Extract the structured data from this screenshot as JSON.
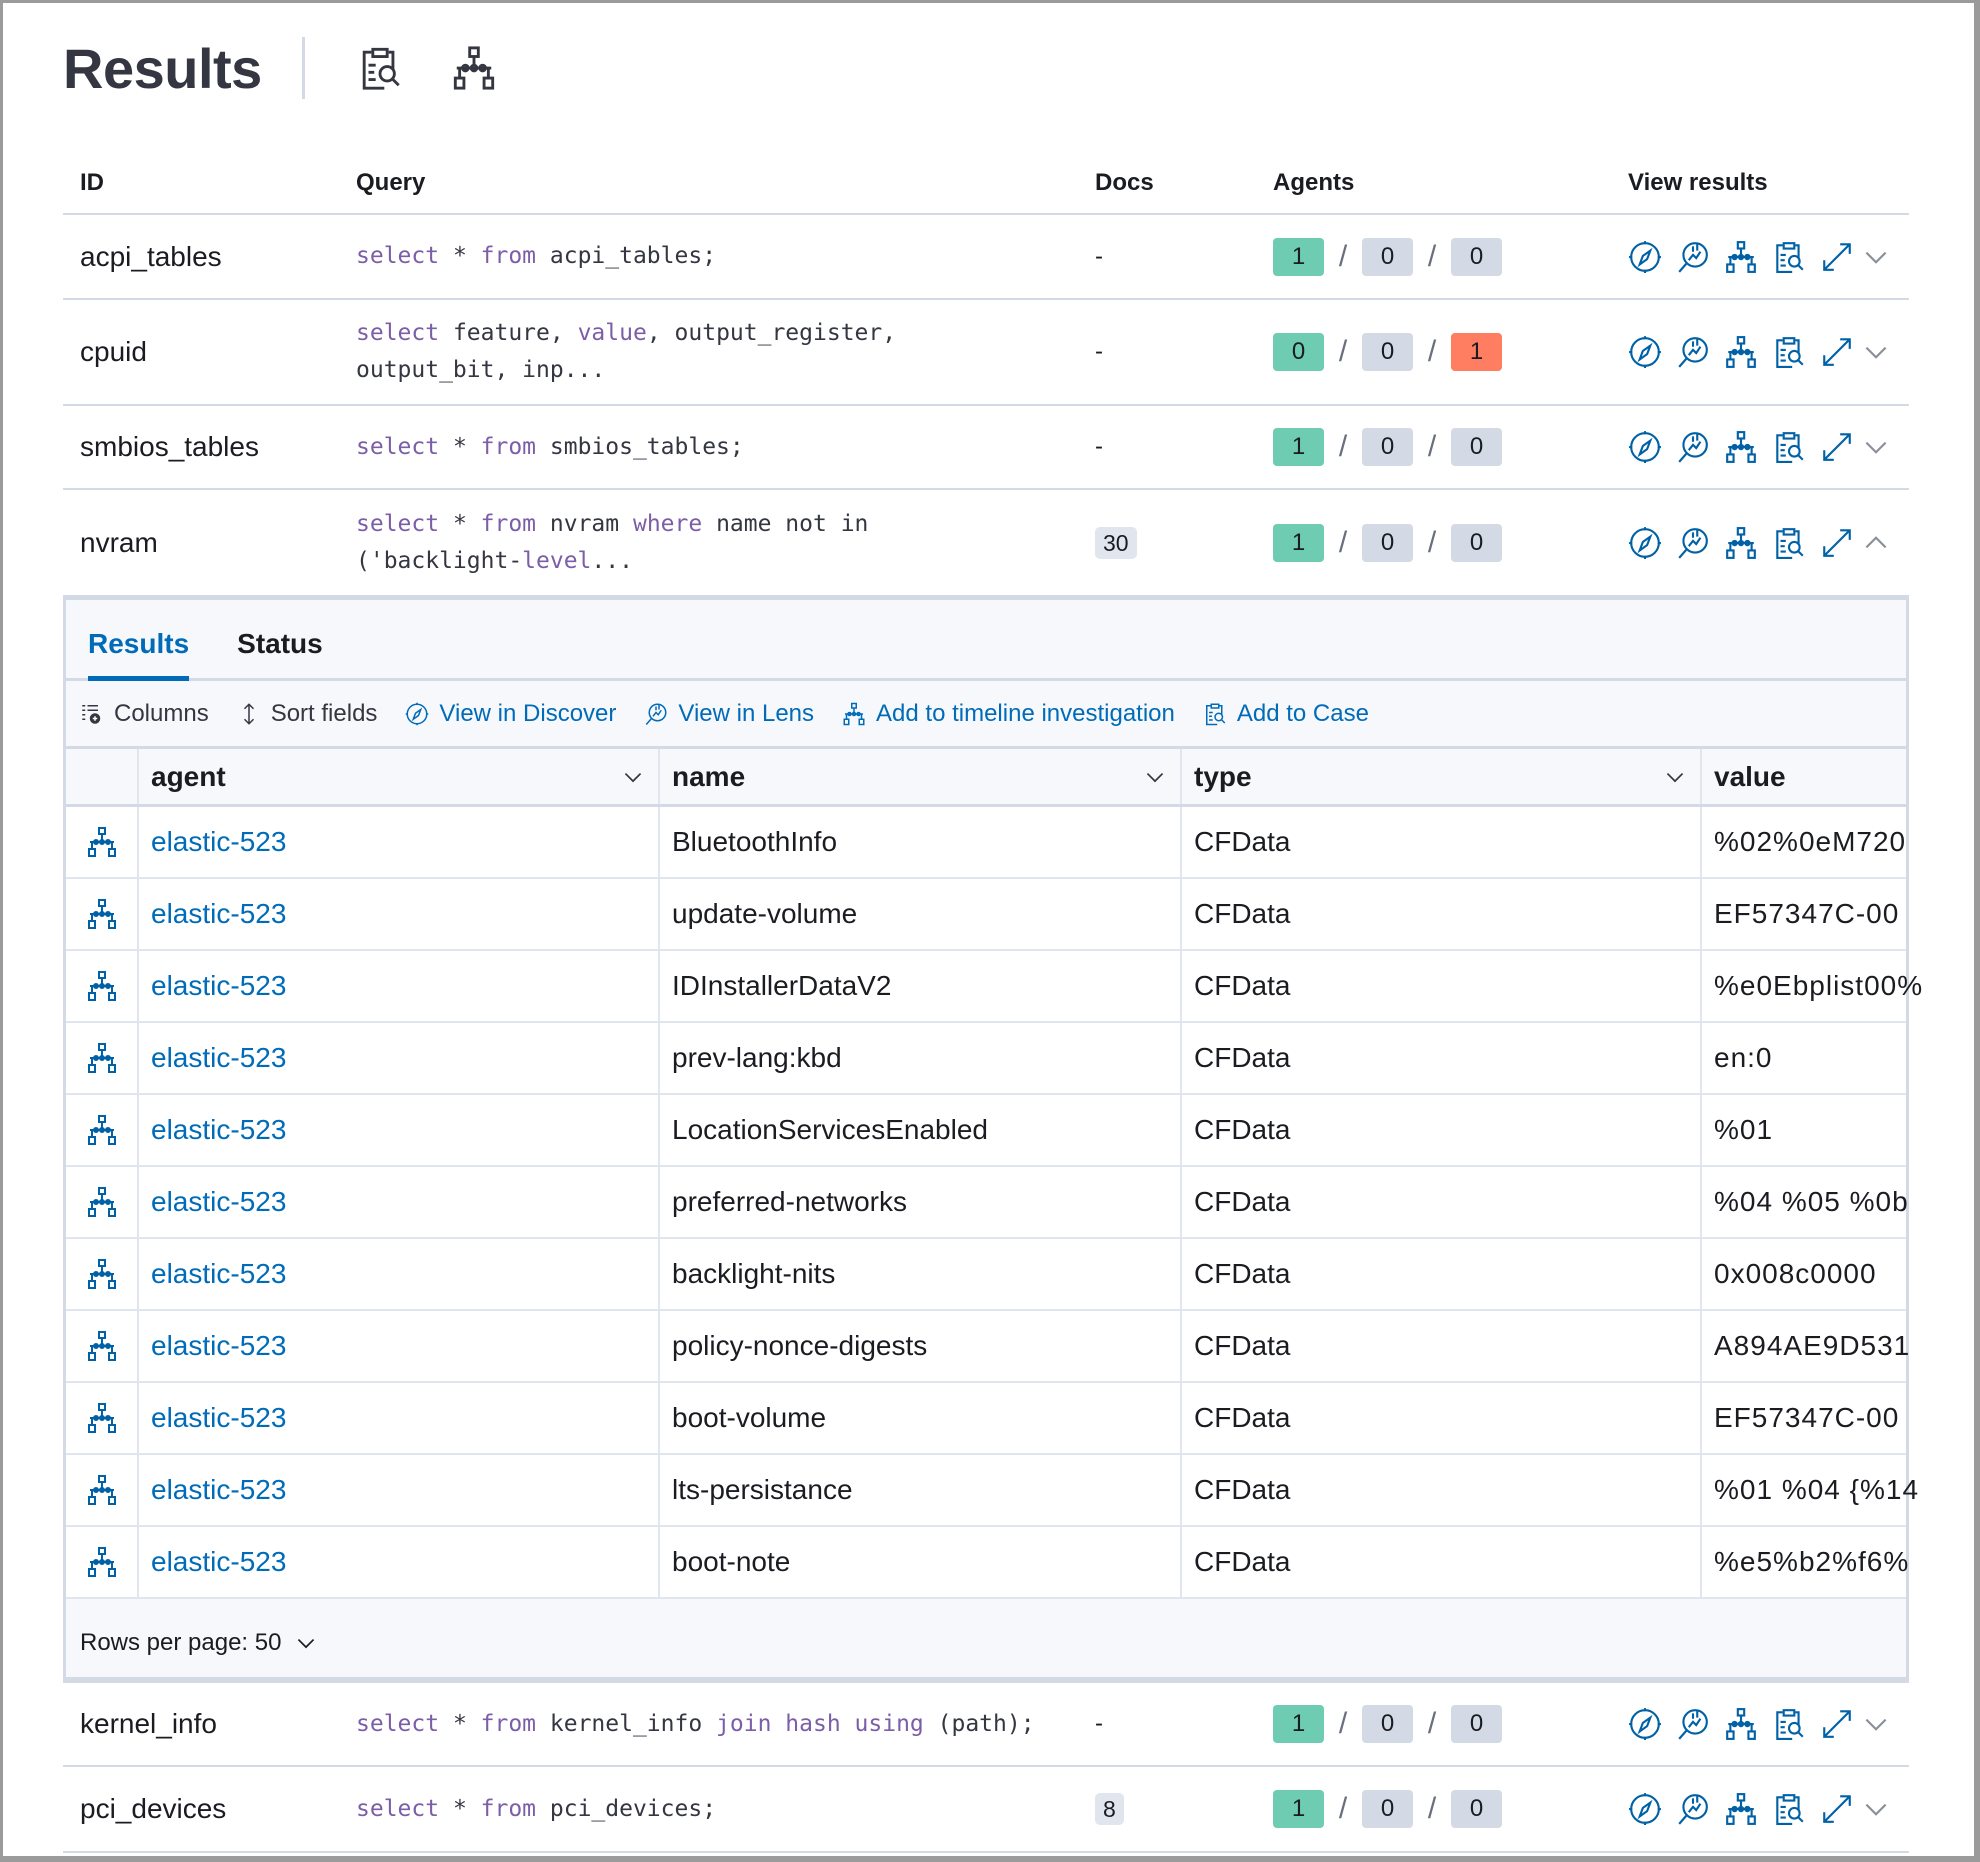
{
  "header": {
    "title": "Results",
    "icons": [
      "add-to-case-icon",
      "timeline-icon"
    ]
  },
  "colors": {
    "success": "#6dccb1",
    "neutral": "#d3dae6",
    "danger": "#ff7e62",
    "link": "#006bb8",
    "keyword": "#7b5ea7"
  },
  "table": {
    "columns": [
      "ID",
      "Query",
      "Docs",
      "Agents",
      "View results"
    ],
    "action_icons": [
      "discover-icon",
      "lens-icon",
      "timeline-icon",
      "add-to-case-icon",
      "expand-icon",
      "chevron-icon"
    ],
    "rows": [
      {
        "id": "acpi_tables",
        "query": [
          {
            "t": "select",
            "kw": true
          },
          {
            "t": " * "
          },
          {
            "t": "from",
            "kw": true
          },
          {
            "t": " acpi_tables;"
          }
        ],
        "docs": "-",
        "agents": [
          "1",
          "0",
          "0"
        ],
        "expanded": false
      },
      {
        "id": "cpuid",
        "query": [
          {
            "t": "select",
            "kw": true
          },
          {
            "t": " feature, "
          },
          {
            "t": "value",
            "kw": true
          },
          {
            "t": ", output_register,\noutput_bit, inp..."
          }
        ],
        "docs": "-",
        "agents": [
          "0",
          "0",
          "1"
        ],
        "expanded": false
      },
      {
        "id": "smbios_tables",
        "query": [
          {
            "t": "select",
            "kw": true
          },
          {
            "t": " * "
          },
          {
            "t": "from",
            "kw": true
          },
          {
            "t": " smbios_tables;"
          }
        ],
        "docs": "-",
        "agents": [
          "1",
          "0",
          "0"
        ],
        "expanded": false
      },
      {
        "id": "nvram",
        "query": [
          {
            "t": "select",
            "kw": true
          },
          {
            "t": " * "
          },
          {
            "t": "from",
            "kw": true
          },
          {
            "t": " nvram "
          },
          {
            "t": "where",
            "kw": true
          },
          {
            "t": " name not in\n('backlight-"
          },
          {
            "t": "level",
            "kw": true
          },
          {
            "t": "..."
          }
        ],
        "docs": "30",
        "agents": [
          "1",
          "0",
          "0"
        ],
        "expanded": true
      },
      {
        "id": "kernel_info",
        "query": [
          {
            "t": "select",
            "kw": true
          },
          {
            "t": " * "
          },
          {
            "t": "from",
            "kw": true
          },
          {
            "t": " kernel_info "
          },
          {
            "t": "join",
            "kw": true
          },
          {
            "t": " "
          },
          {
            "t": "hash",
            "kw": true
          },
          {
            "t": " "
          },
          {
            "t": "using",
            "kw": true
          },
          {
            "t": " (path);"
          }
        ],
        "docs": "-",
        "agents": [
          "1",
          "0",
          "0"
        ],
        "expanded": false
      },
      {
        "id": "pci_devices",
        "query": [
          {
            "t": "select",
            "kw": true
          },
          {
            "t": " * "
          },
          {
            "t": "from",
            "kw": true
          },
          {
            "t": " pci_devices;"
          }
        ],
        "docs": "8",
        "agents": [
          "1",
          "0",
          "0"
        ],
        "expanded": false
      }
    ]
  },
  "panel": {
    "tabs": [
      {
        "label": "Results",
        "active": true
      },
      {
        "label": "Status",
        "active": false
      }
    ],
    "toolbar": {
      "columns": "Columns",
      "sort_fields": "Sort fields",
      "view_in_discover": "View in Discover",
      "view_in_lens": "View in Lens",
      "add_to_timeline": "Add to timeline investigation",
      "add_to_case": "Add to Case"
    },
    "grid": {
      "columns": [
        "agent",
        "name",
        "type",
        "value"
      ],
      "rows": [
        {
          "agent": "elastic-523",
          "name": "BluetoothInfo",
          "type": "CFData",
          "value": "%02%0eM720"
        },
        {
          "agent": "elastic-523",
          "name": "update-volume",
          "type": "CFData",
          "value": "EF57347C-00"
        },
        {
          "agent": "elastic-523",
          "name": "IDInstallerDataV2",
          "type": "CFData",
          "value": "%e0Ebplist00%"
        },
        {
          "agent": "elastic-523",
          "name": "prev-lang:kbd",
          "type": "CFData",
          "value": "en:0"
        },
        {
          "agent": "elastic-523",
          "name": "LocationServicesEnabled",
          "type": "CFData",
          "value": "%01"
        },
        {
          "agent": "elastic-523",
          "name": "preferred-networks",
          "type": "CFData",
          "value": "%04 %05 %0b"
        },
        {
          "agent": "elastic-523",
          "name": "backlight-nits",
          "type": "CFData",
          "value": "0x008c0000"
        },
        {
          "agent": "elastic-523",
          "name": "policy-nonce-digests",
          "type": "CFData",
          "value": "A894AE9D531"
        },
        {
          "agent": "elastic-523",
          "name": "boot-volume",
          "type": "CFData",
          "value": "EF57347C-00"
        },
        {
          "agent": "elastic-523",
          "name": "lts-persistance",
          "type": "CFData",
          "value": "%01 %04 {%14"
        },
        {
          "agent": "elastic-523",
          "name": "boot-note",
          "type": "CFData",
          "value": "%e5%b2%f6%"
        }
      ]
    },
    "rows_per_page": "Rows per page: 50"
  }
}
